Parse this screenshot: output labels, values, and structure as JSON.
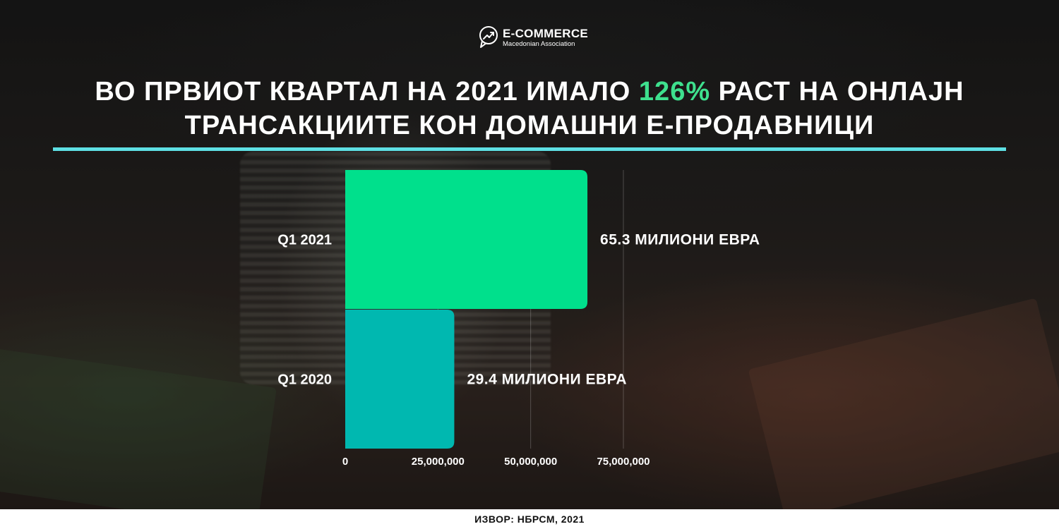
{
  "brand": {
    "name": "E-COMMERCE",
    "subtitle": "Macedonian Association"
  },
  "headline": {
    "line1_before": "ВО ПРВИОТ КВАРТАЛ НА 2021 ИМАЛО ",
    "line1_accent": "126%",
    "line1_after": " РАСТ НА ОНЛАЈН",
    "line2": "ТРАНСАКЦИИТЕ КОН ДОМАШНИ Е-ПРОДАВНИЦИ"
  },
  "colors": {
    "accent_text": "#3ee08e",
    "divider": "#5ee0e4",
    "bar_q1_2021": "#00e08c",
    "bar_q1_2020": "#00b8b0"
  },
  "chart_data": {
    "type": "bar",
    "orientation": "horizontal",
    "categories": [
      "Q1 2021",
      "Q1 2020"
    ],
    "values": [
      65300000,
      29400000
    ],
    "data_labels": [
      "65.3 МИЛИОНИ ЕВРА",
      "29.4 МИЛИОНИ ЕВРА"
    ],
    "xlim": [
      0,
      75000000
    ],
    "xticks": [
      0,
      25000000,
      50000000,
      75000000
    ],
    "xtick_labels": [
      "0",
      "25,000,000",
      "50,000,000",
      "75,000,000"
    ],
    "grid": true
  },
  "source": "ИЗВОР: НБРСМ, 2021"
}
